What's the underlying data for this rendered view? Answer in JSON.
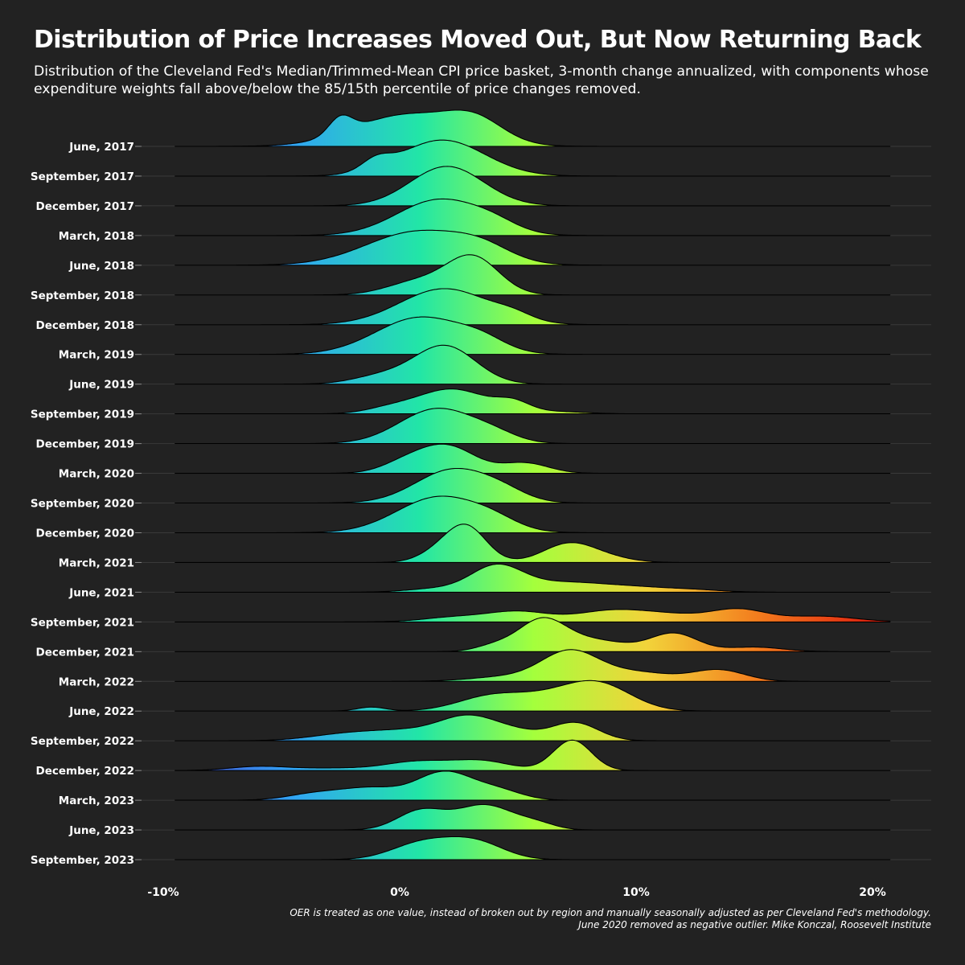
{
  "title": "Distribution of Price Increases Moved Out, But Now Returning Back",
  "subtitle": "Distribution of the Cleveland Fed's Median/Trimmed-Mean CPI price basket, 3-month change annualized, with components whose expenditure weights fall above/below the 85/15th percentile of price changes removed.",
  "footnote": {
    "line1": "OER is treated as one value, instead of broken out by region and manually seasonally adjusted as per Cleveland Fed's methodology.",
    "line2": "June 2020 removed as negative outlier. Mike Konczal, Roosevelt Institute"
  },
  "colors": {
    "background": "#222222",
    "gradient_low": "#4a3fcf",
    "gradient_mid_low": "#31a4f4",
    "gradient_mid": "#22e6a6",
    "gradient_mid_high": "#a4ff3c",
    "gradient_high": "#f2d33a",
    "gradient_top": "#e02210"
  },
  "chart_data": {
    "type": "ridgeline",
    "x_unit": "percent",
    "xlim": [
      -10.5,
      21
    ],
    "x_ticks": [
      -10,
      0,
      10,
      20
    ],
    "x_tick_labels": [
      "-10%",
      "0%",
      "10%",
      "20%"
    ],
    "grid": true,
    "series": [
      {
        "name": "June, 2017",
        "range": [
          -9.5,
          20.8
        ],
        "peaks": [
          [
            -2.5,
            0.5,
            1.5
          ],
          [
            0.3,
            2.2,
            2.8
          ],
          [
            3.2,
            1.2,
            1.8
          ]
        ]
      },
      {
        "name": "September, 2017",
        "range": [
          -9.5,
          20.8
        ],
        "peaks": [
          [
            1.8,
            1.8,
            3.2
          ],
          [
            -1.0,
            0.6,
            0.9
          ]
        ]
      },
      {
        "name": "December, 2017",
        "range": [
          -9.5,
          20.8
        ],
        "peaks": [
          [
            2.0,
            1.55,
            3.5
          ]
        ]
      },
      {
        "name": "March, 2018",
        "range": [
          -9.5,
          20.8
        ],
        "peaks": [
          [
            1.7,
            1.8,
            3.2
          ],
          [
            4.0,
            1.0,
            0.6
          ]
        ]
      },
      {
        "name": "June, 2018",
        "range": [
          -9.5,
          20.8
        ],
        "peaks": [
          [
            0.8,
            2.2,
            3.0
          ],
          [
            3.5,
            1.2,
            1.0
          ]
        ]
      },
      {
        "name": "September, 2018",
        "range": [
          -9.5,
          20.8
        ],
        "peaks": [
          [
            3.1,
            1.1,
            3.3
          ],
          [
            0.8,
            1.3,
            1.2
          ]
        ]
      },
      {
        "name": "December, 2018",
        "range": [
          -9.5,
          20.8
        ],
        "peaks": [
          [
            1.9,
            1.9,
            3.2
          ],
          [
            4.8,
            0.8,
            0.5
          ]
        ]
      },
      {
        "name": "March, 2019",
        "range": [
          -9.5,
          20.8
        ],
        "peaks": [
          [
            0.9,
            1.9,
            3.3
          ],
          [
            3.5,
            1.0,
            0.8
          ]
        ]
      },
      {
        "name": "June, 2019",
        "range": [
          -9.5,
          20.8
        ],
        "peaks": [
          [
            1.9,
            1.3,
            3.4
          ],
          [
            -0.8,
            1.2,
            0.7
          ]
        ]
      },
      {
        "name": "September, 2019",
        "range": [
          -9.5,
          20.8
        ],
        "peaks": [
          [
            2.2,
            1.5,
            2.2
          ],
          [
            4.8,
            0.7,
            0.8
          ],
          [
            -0.5,
            1.0,
            0.4
          ],
          [
            6.5,
            1.3,
            0.2
          ]
        ]
      },
      {
        "name": "December, 2019",
        "range": [
          -9.5,
          20.8
        ],
        "peaks": [
          [
            1.6,
            1.6,
            3.1
          ],
          [
            4.0,
            1.0,
            0.6
          ]
        ]
      },
      {
        "name": "March, 2020",
        "range": [
          -9.5,
          20.8
        ],
        "peaks": [
          [
            2.0,
            1.2,
            2.4
          ],
          [
            5.3,
            1.0,
            0.9
          ],
          [
            0.2,
            1.0,
            0.8
          ]
        ]
      },
      {
        "name": "September, 2020",
        "range": [
          -9.5,
          20.8
        ],
        "peaks": [
          [
            2.3,
            1.6,
            3.0
          ],
          [
            4.4,
            1.0,
            0.6
          ]
        ]
      },
      {
        "name": "December, 2020",
        "range": [
          -9.5,
          20.8
        ],
        "peaks": [
          [
            1.7,
            1.8,
            3.2
          ],
          [
            4.0,
            1.0,
            0.6
          ]
        ]
      },
      {
        "name": "March, 2021",
        "range": [
          -9.5,
          20.8
        ],
        "peaks": [
          [
            2.8,
            0.85,
            3.2
          ],
          [
            7.2,
            1.1,
            1.7
          ],
          [
            1.5,
            0.8,
            0.7
          ],
          [
            9.0,
            1.0,
            0.3
          ]
        ]
      },
      {
        "name": "June, 2021",
        "range": [
          -9.5,
          20.8
        ],
        "peaks": [
          [
            4.1,
            1.1,
            2.3
          ],
          [
            6.7,
            1.5,
            0.7
          ],
          [
            9.5,
            1.8,
            0.5
          ],
          [
            1.5,
            1.2,
            0.3
          ],
          [
            12.5,
            1.2,
            0.15
          ]
        ]
      },
      {
        "name": "September, 2021",
        "range": [
          -9.5,
          20.8
        ],
        "peaks": [
          [
            5.0,
            1.3,
            0.9
          ],
          [
            9.0,
            1.5,
            1.0
          ],
          [
            14.3,
            1.2,
            1.1
          ],
          [
            17.8,
            1.5,
            0.5
          ],
          [
            2.3,
            1.3,
            0.4
          ],
          [
            11.5,
            1.3,
            0.5
          ]
        ]
      },
      {
        "name": "December, 2021",
        "range": [
          -9.5,
          20.8
        ],
        "peaks": [
          [
            6.0,
            1.0,
            2.7
          ],
          [
            11.6,
            1.0,
            1.6
          ],
          [
            8.2,
            1.4,
            1.0
          ],
          [
            15.0,
            1.2,
            0.4
          ],
          [
            4.0,
            0.8,
            0.5
          ]
        ]
      },
      {
        "name": "March, 2022",
        "range": [
          -9.5,
          20.8
        ],
        "peaks": [
          [
            7.2,
            1.2,
            2.6
          ],
          [
            13.5,
            1.1,
            1.0
          ],
          [
            10.0,
            1.5,
            0.8
          ],
          [
            4.5,
            1.5,
            0.4
          ]
        ]
      },
      {
        "name": "June, 2022",
        "range": [
          -9.5,
          20.8
        ],
        "peaks": [
          [
            8.4,
            1.4,
            2.3
          ],
          [
            3.8,
            1.4,
            1.2
          ],
          [
            6.2,
            1.5,
            1.0
          ],
          [
            -1.2,
            0.6,
            0.35
          ]
        ]
      },
      {
        "name": "September, 2022",
        "range": [
          -9.5,
          20.8
        ],
        "peaks": [
          [
            3.0,
            1.2,
            1.8
          ],
          [
            7.4,
            1.0,
            1.6
          ],
          [
            0.5,
            2.0,
            0.9
          ],
          [
            -2.5,
            1.5,
            0.4
          ],
          [
            5.0,
            1.0,
            0.6
          ]
        ]
      },
      {
        "name": "December, 2022",
        "range": [
          -9.5,
          20.8
        ],
        "peaks": [
          [
            7.3,
            0.8,
            2.7
          ],
          [
            3.5,
            1.2,
            0.8
          ],
          [
            0.8,
            1.4,
            0.8
          ],
          [
            -6.0,
            1.2,
            0.35
          ],
          [
            -3.0,
            1.5,
            0.2
          ]
        ]
      },
      {
        "name": "March, 2023",
        "range": [
          -9.5,
          20.8
        ],
        "peaks": [
          [
            1.9,
            1.2,
            2.5
          ],
          [
            -1.2,
            1.2,
            1.0
          ],
          [
            -3.5,
            1.2,
            0.6
          ],
          [
            4.2,
            1.0,
            0.8
          ]
        ]
      },
      {
        "name": "June, 2023",
        "range": [
          -9.5,
          20.8
        ],
        "peaks": [
          [
            3.6,
            1.2,
            2.2
          ],
          [
            0.9,
            1.0,
            1.7
          ],
          [
            5.8,
            0.8,
            0.5
          ]
        ]
      },
      {
        "name": "September, 2023",
        "range": [
          -9.5,
          20.8
        ],
        "peaks": [
          [
            1.0,
            1.3,
            1.5
          ],
          [
            3.2,
            1.2,
            1.5
          ]
        ]
      }
    ]
  }
}
